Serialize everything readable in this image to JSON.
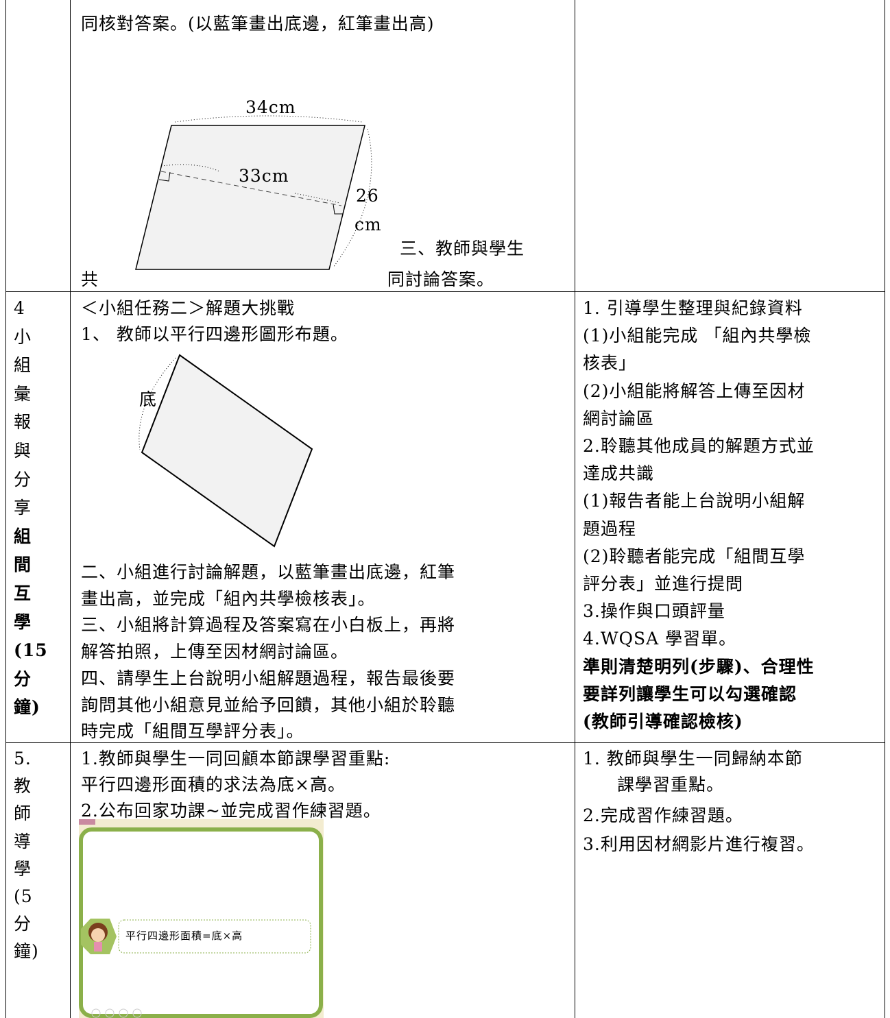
{
  "rows": [
    {
      "content": {
        "lines": [
          "同核對答案。(以藍筆畫出底邊，紅筆畫出高)"
        ],
        "figure_labels": [
          "34cm",
          "33cm",
          "26",
          "cm"
        ],
        "tail": [
          "三、教師與學生",
          "共",
          "同討論答案。"
        ]
      }
    },
    {
      "stage": [
        "4",
        "小",
        "組",
        "彙",
        "報",
        "與",
        "分",
        "享",
        "組",
        "間",
        "互",
        "學",
        "(15",
        "分",
        "鐘)"
      ],
      "content": {
        "intro": [
          "＜小組任務二＞解題大挑戰",
          "1、 教師以平行四邊形圖形布題。"
        ],
        "figure_labels": [
          "底"
        ],
        "lines": [
          "二、小組進行討論解題，以藍筆畫出底邊，紅筆",
          "畫出高，並完成「組內共學檢核表」。",
          "三、小組將計算過程及答案寫在小白板上，再將",
          "解答拍照，上傳至因材網討論區。",
          "四、請學生上台說明小組解題過程，報告最後要",
          "詢問其他小組意見並給予回饋，其他小組於聆聽",
          "時完成「組間互學評分表」。"
        ]
      },
      "assessment": [
        "1. 引導學生整理與紀錄資料",
        "(1)小組能完成 「組內共學檢",
        "核表」",
        "(2)小組能將解答上傳至因材",
        "網討論區",
        "2.聆聽其他成員的解題方式並",
        "達成共識",
        "(1)報告者能上台說明小組解",
        "題過程",
        "(2)聆聽者能完成「組間互學",
        "評分表」並進行提問",
        "3.操作與口頭評量",
        "4.WQSA 學習單。",
        "準則清楚明列(步驟)、合理性",
        "要詳列讓學生可以勾選確認",
        "(教師引導確認檢核)"
      ]
    },
    {
      "stage": [
        "5.",
        "教",
        "師",
        "導",
        "學",
        "(5",
        "分",
        "鐘)"
      ],
      "content": {
        "lines": [
          "1.教師與學生一同回顧本節課學習重點:",
          "平行四邊形面積的求法為底×高。",
          "2.公布回家功課~並完成習作練習題。"
        ],
        "slide_text": "平行四邊形面積=底×高"
      },
      "assessment": [
        "1. 教師與學生一同歸納本節",
        "課學習重點。",
        "2.完成習作練習題。",
        "3.利用因材網影片進行複習。"
      ]
    }
  ]
}
